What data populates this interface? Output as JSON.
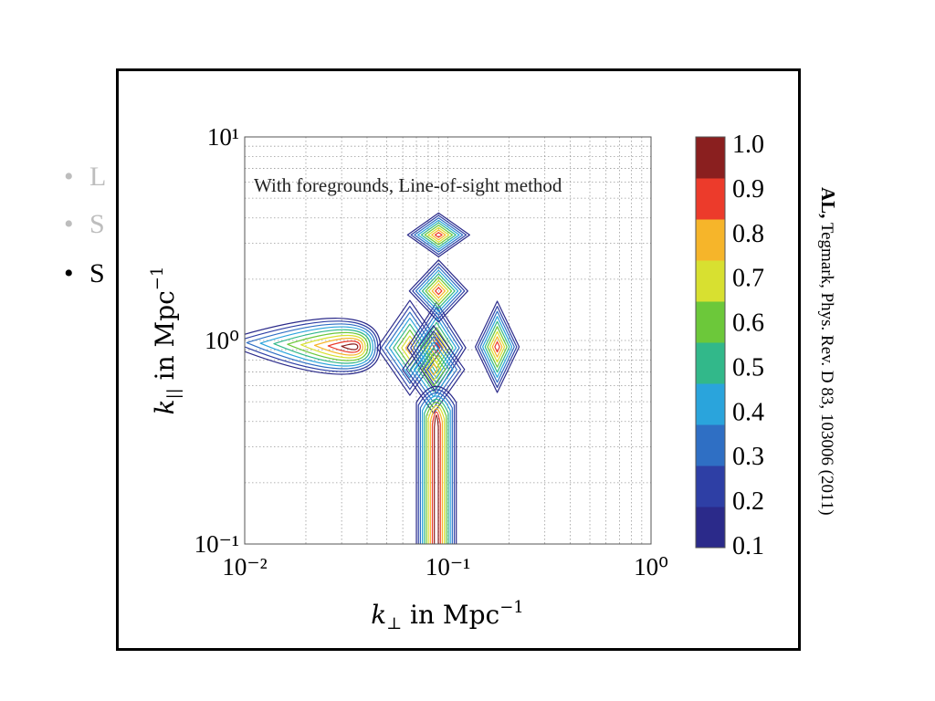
{
  "slide": {
    "heading": "",
    "bullets": [
      {
        "text": "L",
        "state": "faded"
      },
      {
        "text": "S",
        "state": "faded"
      },
      {
        "text": "S",
        "state": "active"
      }
    ]
  },
  "citation": {
    "authors_bold": "AL,",
    "rest": " Tegmark, Phys. Rev. D 83, 103006 (2011)"
  },
  "chart_data": {
    "type": "contour",
    "title": "With foregrounds, Line-of-sight method",
    "xlabel": "k⊥ in Mpc⁻¹",
    "ylabel": "k|| in Mpc⁻¹",
    "xscale": "log",
    "yscale": "log",
    "xlim": [
      0.01,
      1
    ],
    "ylim": [
      0.1,
      10
    ],
    "x_ticks": [
      "10⁻²",
      "10⁻¹",
      "10⁰"
    ],
    "y_ticks": [
      "10⁻¹",
      "10⁰",
      "10¹"
    ],
    "grid": true,
    "contour_levels": [
      0.1,
      0.2,
      0.3,
      0.4,
      0.5,
      0.6,
      0.7,
      0.8,
      0.9,
      1.0
    ],
    "colorbar": {
      "ticks": [
        "0.1",
        "0.2",
        "0.3",
        "0.4",
        "0.5",
        "0.6",
        "0.7",
        "0.8",
        "0.9",
        "1.0"
      ],
      "colors": [
        "#2b2a8a",
        "#2e3fa5",
        "#2f6fc4",
        "#2aa4dc",
        "#32b88a",
        "#6cc83a",
        "#d8e030",
        "#f6b52a",
        "#ec3b2b",
        "#8a1f1f"
      ]
    },
    "peaks": [
      {
        "k_perp": 0.035,
        "k_par": 0.93
      },
      {
        "k_perp": 0.065,
        "k_par": 0.92
      },
      {
        "k_perp": 0.088,
        "k_par": 0.92
      },
      {
        "k_perp": 0.085,
        "k_par": 0.72
      },
      {
        "k_perp": 0.09,
        "k_par": 1.75
      },
      {
        "k_perp": 0.09,
        "k_par": 3.3
      },
      {
        "k_perp": 0.175,
        "k_par": 0.93
      }
    ],
    "wedge": {
      "k_perp_min": 0.07,
      "k_perp_max": 0.11,
      "k_par_from": 0.55
    }
  }
}
